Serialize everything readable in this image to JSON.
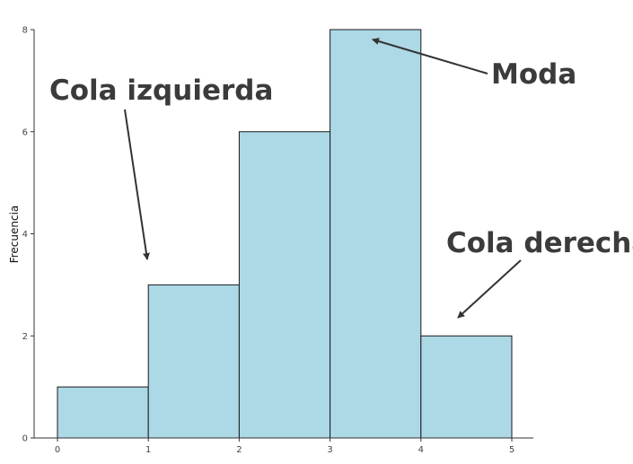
{
  "chart_data": {
    "type": "bar",
    "subtype": "histogram",
    "bins": [
      {
        "start": 0,
        "end": 1,
        "value": 1
      },
      {
        "start": 1,
        "end": 2,
        "value": 3
      },
      {
        "start": 2,
        "end": 3,
        "value": 6
      },
      {
        "start": 3,
        "end": 4,
        "value": 8
      },
      {
        "start": 4,
        "end": 5,
        "value": 2
      }
    ],
    "x_ticks": [
      "0",
      "1",
      "2",
      "3",
      "4",
      "5"
    ],
    "y_ticks": [
      "0",
      "2",
      "4",
      "6",
      "8"
    ],
    "xlim": [
      0,
      5
    ],
    "ylim": [
      0,
      8
    ],
    "xlabel": "",
    "ylabel": "Frecuencia",
    "grid": false,
    "bar_fill": "#add8e6",
    "bar_stroke": "#1a1a1a",
    "annotations": [
      {
        "id": "left-tail",
        "text": "Cola izquierda"
      },
      {
        "id": "mode",
        "text": "Moda"
      },
      {
        "id": "right-tail",
        "text": "Cola derecha"
      }
    ]
  }
}
